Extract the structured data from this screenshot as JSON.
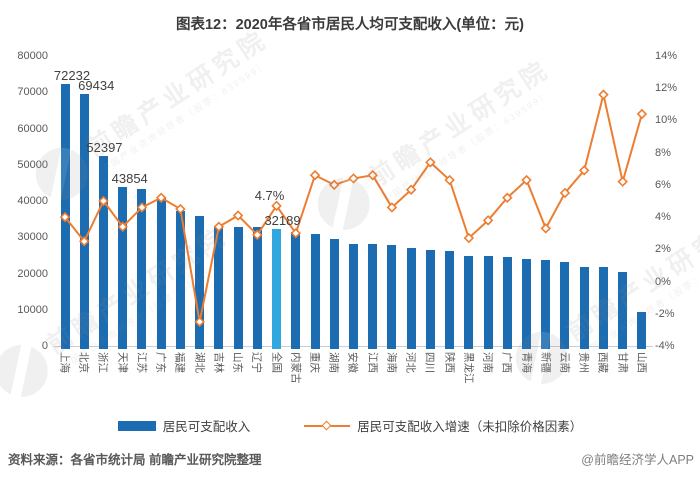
{
  "title": "图表12：2020年各省市居民人均可支配收入(单位：元)",
  "chart_data": {
    "type": "bar",
    "combo": "bar+line",
    "categories": [
      "上海",
      "北京",
      "浙江",
      "天津",
      "江苏",
      "广东",
      "福建",
      "湖北",
      "吉林",
      "山东",
      "辽宁",
      "全国",
      "内蒙古",
      "重庆",
      "湖南",
      "安徽",
      "江西",
      "海南",
      "河北",
      "四川",
      "陕西",
      "黑龙江",
      "河南",
      "广西",
      "青海",
      "新疆",
      "云南",
      "贵州",
      "西藏",
      "甘肃",
      "山西"
    ],
    "series": [
      {
        "name": "居民可支配收入",
        "type": "bar",
        "axis": "left",
        "values": [
          72232,
          69434,
          52397,
          43854,
          43390,
          41029,
          37202,
          36000,
          33000,
          32886,
          32738,
          32189,
          31497,
          30824,
          29380,
          28103,
          28017,
          27904,
          27136,
          26522,
          26226,
          24902,
          24810,
          24562,
          24037,
          23845,
          23295,
          21795,
          21744,
          20335,
          9400
        ]
      },
      {
        "name": "居民可支配收入增速（未扣除价格因素）",
        "type": "line",
        "axis": "right",
        "values": [
          4.0,
          2.5,
          5.0,
          3.4,
          4.6,
          5.2,
          4.5,
          -2.5,
          3.4,
          4.1,
          2.9,
          4.7,
          3.0,
          6.6,
          6.0,
          6.4,
          6.6,
          4.6,
          5.7,
          7.4,
          6.3,
          2.7,
          3.8,
          5.2,
          6.3,
          3.3,
          5.5,
          6.9,
          11.6,
          6.2,
          10.4
        ]
      }
    ],
    "left_axis": {
      "min": 0,
      "max": 80000,
      "step": 10000,
      "ticks": [
        "0",
        "10000",
        "20000",
        "30000",
        "40000",
        "50000",
        "60000",
        "70000",
        "80000"
      ]
    },
    "right_axis": {
      "min": -4,
      "max": 14,
      "step": 2,
      "ticks": [
        "-4%",
        "-2%",
        "0%",
        "2%",
        "4%",
        "6%",
        "8%",
        "10%",
        "12%",
        "14%"
      ]
    },
    "annotations": [
      {
        "target": "bar",
        "index": 0,
        "text": "72232"
      },
      {
        "target": "bar",
        "index": 1,
        "text": "69434"
      },
      {
        "target": "bar",
        "index": 2,
        "text": "52397"
      },
      {
        "target": "bar",
        "index": 3,
        "text": "43854"
      },
      {
        "target": "line",
        "index": 11,
        "text": "4.7%"
      },
      {
        "target": "bar",
        "index": 11,
        "text": "32189"
      }
    ],
    "highlight_category": "全国",
    "highlight_index": 11,
    "grid": "off",
    "legend_position": "bottom",
    "colors": {
      "bar": "#1B6CB1",
      "bar_highlight": "#30A7DE",
      "line": "#ED7D31"
    }
  },
  "legend": [
    {
      "label": "居民可支配收入"
    },
    {
      "label": "居民可支配收入增速（未扣除价格因素）"
    }
  ],
  "footer": {
    "source": "资料来源：各省市统计局 前瞻产业研究院整理",
    "brand": "@前瞻经济学人APP"
  },
  "watermark": {
    "text": "前瞻产业研究院",
    "subtext": "中国产业咨询领导者（股票：839599）"
  }
}
